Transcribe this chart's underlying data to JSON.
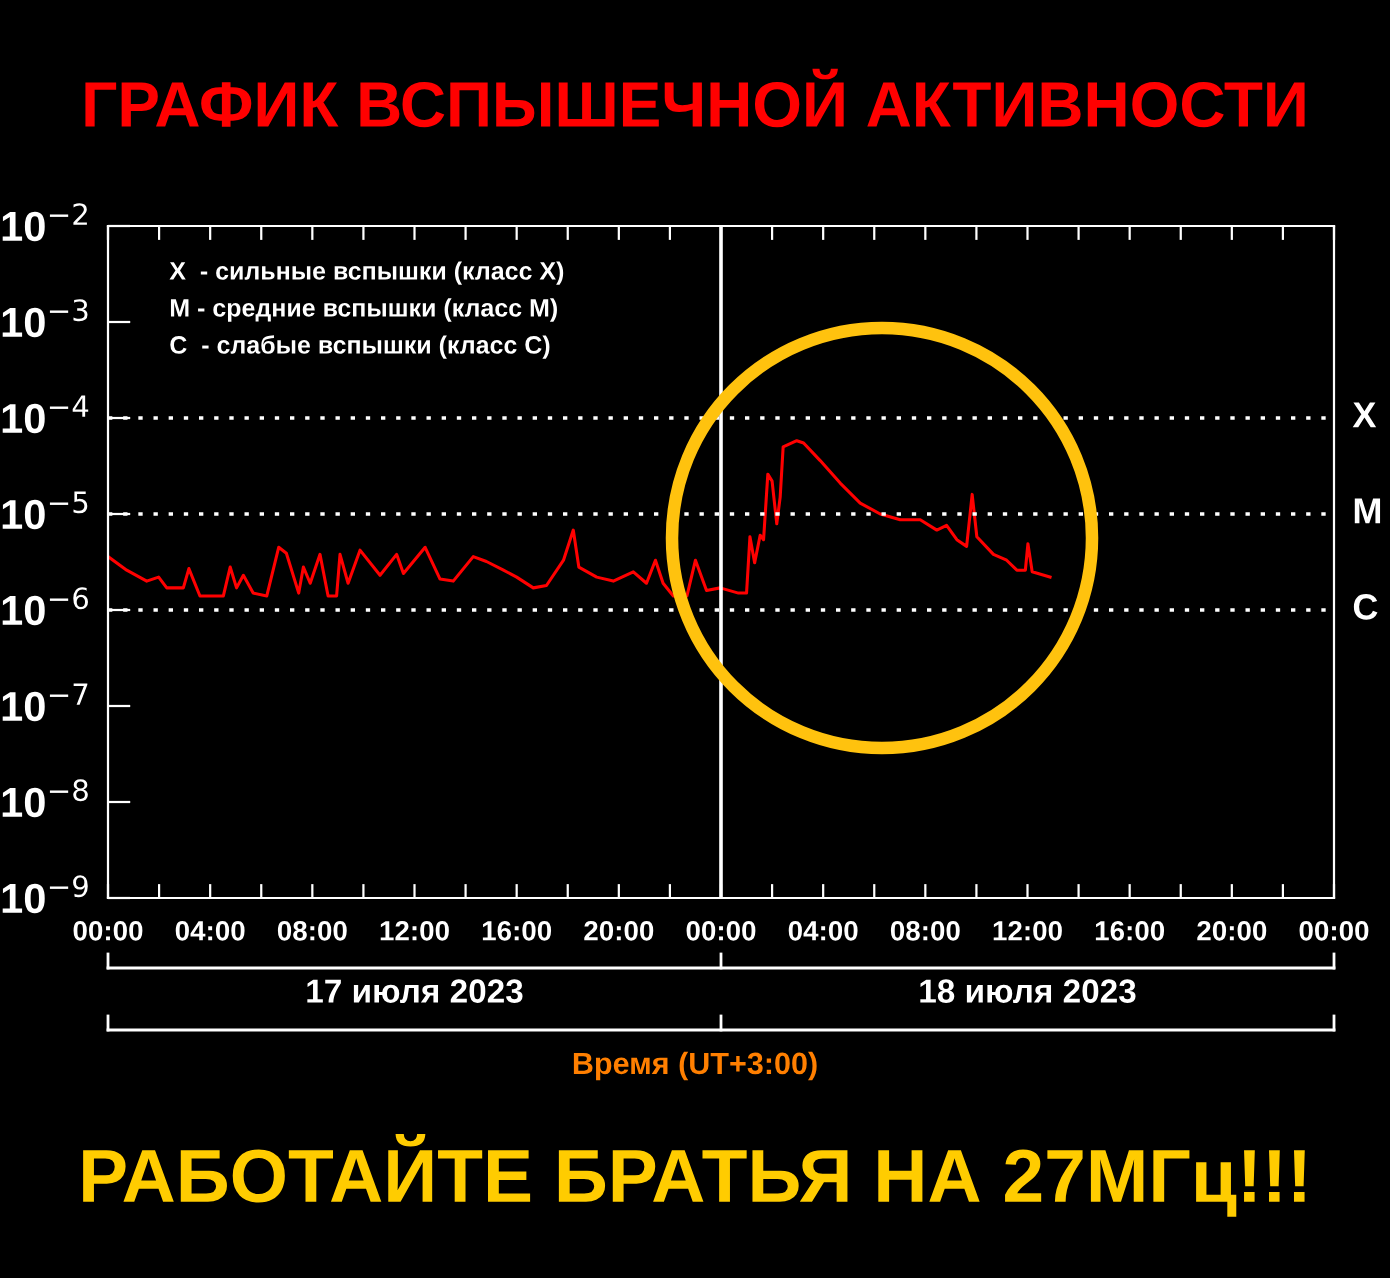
{
  "chart_data": {
    "type": "line",
    "title": "ГРАФИК ВСПЫШЕЧНОЙ АКТИВНОСТИ",
    "xlabel": "Время (UT+3:00)",
    "log": "y",
    "x": [
      "2023-07-17T00:00",
      "2023-07-17T00:44",
      "2023-07-17T01:31",
      "2023-07-17T01:59",
      "2023-07-17T02:18",
      "2023-07-17T02:57",
      "2023-07-17T03:10",
      "2023-07-17T03:36",
      "2023-07-17T04:31",
      "2023-07-17T04:47",
      "2023-07-17T05:02",
      "2023-07-17T05:18",
      "2023-07-17T05:41",
      "2023-07-17T06:13",
      "2023-07-17T06:41",
      "2023-07-17T06:59",
      "2023-07-17T07:28",
      "2023-07-17T07:39",
      "2023-07-17T07:55",
      "2023-07-17T08:18",
      "2023-07-17T08:37",
      "2023-07-17T08:57",
      "2023-07-17T09:05",
      "2023-07-17T09:24",
      "2023-07-17T09:52",
      "2023-07-17T10:39",
      "2023-07-17T11:18",
      "2023-07-17T11:34",
      "2023-07-17T12:25",
      "2023-07-17T13:00",
      "2023-07-17T13:31",
      "2023-07-17T14:18",
      "2023-07-17T14:49",
      "2023-07-17T15:29",
      "2023-07-17T16:00",
      "2023-07-17T16:39",
      "2023-07-17T17:10",
      "2023-07-17T17:50",
      "2023-07-17T18:13",
      "2023-07-17T18:26",
      "2023-07-17T19:08",
      "2023-07-17T19:47",
      "2023-07-17T20:34",
      "2023-07-17T21:05",
      "2023-07-17T21:26",
      "2023-07-17T21:44",
      "2023-07-17T22:08",
      "2023-07-17T22:40",
      "2023-07-17T23:00",
      "2023-07-17T23:26",
      "2023-07-17T23:58",
      "2023-07-18T00:41",
      "2023-07-18T01:00",
      "2023-07-18T01:08",
      "2023-07-18T01:19",
      "2023-07-18T01:32",
      "2023-07-18T01:40",
      "2023-07-18T01:50",
      "2023-07-18T02:00",
      "2023-07-18T02:11",
      "2023-07-18T02:19",
      "2023-07-18T02:26",
      "2023-07-18T02:58",
      "2023-07-18T03:14",
      "2023-07-18T03:53",
      "2023-07-18T04:40",
      "2023-07-18T05:27",
      "2023-07-18T06:14",
      "2023-07-18T07:01",
      "2023-07-18T07:48",
      "2023-07-18T08:27",
      "2023-07-18T08:50",
      "2023-07-18T09:14",
      "2023-07-18T09:37",
      "2023-07-18T09:50",
      "2023-07-18T10:01",
      "2023-07-18T10:40",
      "2023-07-18T11:11",
      "2023-07-18T11:35",
      "2023-07-18T11:55",
      "2023-07-18T12:01",
      "2023-07-18T12:11",
      "2023-07-18T12:53"
    ],
    "series": [
      {
        "color": "#ff0000",
        "values": [
          3.6e-06,
          2.6e-06,
          2e-06,
          2.2e-06,
          1.7e-06,
          1.7e-06,
          2.7e-06,
          1.4e-06,
          1.4e-06,
          2.8e-06,
          1.7e-06,
          2.3e-06,
          1.5e-06,
          1.4e-06,
          4.5e-06,
          3.9e-06,
          1.5e-06,
          2.8e-06,
          1.9e-06,
          3.8e-06,
          1.4e-06,
          1.4e-06,
          3.8e-06,
          1.9e-06,
          4.2e-06,
          2.3e-06,
          3.8e-06,
          2.4e-06,
          4.5e-06,
          2.1e-06,
          2e-06,
          3.6e-06,
          3.2e-06,
          2.6e-06,
          2.2e-06,
          1.7e-06,
          1.8e-06,
          3.3e-06,
          6.8e-06,
          2.8e-06,
          2.2e-06,
          2e-06,
          2.5e-06,
          1.9e-06,
          3.3e-06,
          1.9e-06,
          1.4e-06,
          1.4e-06,
          3.3e-06,
          1.6e-06,
          1.7e-06,
          1.5e-06,
          1.5e-06,
          5.8e-06,
          3.1e-06,
          6e-06,
          5.4e-06,
          2.6e-05,
          2.2e-05,
          7.9e-06,
          1.5e-05,
          5e-05,
          5.8e-05,
          5.5e-05,
          3.6e-05,
          2.1e-05,
          1.3e-05,
          1e-05,
          8.7e-06,
          8.7e-06,
          6.8e-06,
          7.6e-06,
          5.4e-06,
          4.6e-06,
          1.6e-05,
          5.8e-06,
          3.8e-06,
          3.3e-06,
          2.6e-06,
          2.6e-06,
          4.9e-06,
          2.5e-06,
          2.2e-06
        ]
      }
    ],
    "xlim": [
      "2023-07-17T00:00",
      "2023-07-19T00:00"
    ],
    "xticks": [
      {
        "value": "2023-07-17T00:00",
        "label": "00:00"
      },
      {
        "value": "2023-07-17T02:00",
        "label": null
      },
      {
        "value": "2023-07-17T04:00",
        "label": "04:00"
      },
      {
        "value": "2023-07-17T06:00",
        "label": null
      },
      {
        "value": "2023-07-17T08:00",
        "label": "08:00"
      },
      {
        "value": "2023-07-17T10:00",
        "label": null
      },
      {
        "value": "2023-07-17T12:00",
        "label": "12:00"
      },
      {
        "value": "2023-07-17T14:00",
        "label": null
      },
      {
        "value": "2023-07-17T16:00",
        "label": "16:00"
      },
      {
        "value": "2023-07-17T18:00",
        "label": null
      },
      {
        "value": "2023-07-17T20:00",
        "label": "20:00"
      },
      {
        "value": "2023-07-17T22:00",
        "label": null
      },
      {
        "value": "2023-07-18T00:00",
        "label": "00:00"
      },
      {
        "value": "2023-07-18T02:00",
        "label": null
      },
      {
        "value": "2023-07-18T04:00",
        "label": "04:00"
      },
      {
        "value": "2023-07-18T06:00",
        "label": null
      },
      {
        "value": "2023-07-18T08:00",
        "label": "08:00"
      },
      {
        "value": "2023-07-18T10:00",
        "label": null
      },
      {
        "value": "2023-07-18T12:00",
        "label": "12:00"
      },
      {
        "value": "2023-07-18T14:00",
        "label": null
      },
      {
        "value": "2023-07-18T16:00",
        "label": "16:00"
      },
      {
        "value": "2023-07-18T18:00",
        "label": null
      },
      {
        "value": "2023-07-18T20:00",
        "label": "20:00"
      },
      {
        "value": "2023-07-18T22:00",
        "label": null
      },
      {
        "value": "2023-07-19T00:00",
        "label": "00:00"
      }
    ],
    "ylim": [
      1e-09,
      0.01
    ],
    "yticks": [
      {
        "value": 1e-09,
        "label": "10$^{−9}$"
      },
      {
        "value": 1e-08,
        "label": "10$^{−8}$"
      },
      {
        "value": 1e-07,
        "label": "10$^{−7}$"
      },
      {
        "value": 1e-06,
        "label": "10$^{−6}$"
      },
      {
        "value": 1e-05,
        "label": "10$^{−5}$"
      },
      {
        "value": 0.0001,
        "label": "10$^{−4}$"
      },
      {
        "value": 0.001,
        "label": "10$^{−3}$"
      },
      {
        "value": 0.01,
        "label": "10$^{−2}$"
      }
    ],
    "ref_lines": [
      {
        "axis": "y",
        "value": 0.0001,
        "label": "X",
        "color": "#ffffff",
        "line_style": "dotted"
      },
      {
        "axis": "y",
        "value": 1e-05,
        "label": "M",
        "color": "#ffffff",
        "line_style": "dotted"
      },
      {
        "axis": "y",
        "value": 1e-06,
        "label": "C",
        "color": "#ffffff",
        "line_style": "dotted"
      },
      {
        "axis": "x",
        "value": "2023-07-18T00:00",
        "color": "#ffffff",
        "line_style": "solid"
      }
    ],
    "annotations": [
      "X  - сильные вспышки (класс X)",
      "M - средние вспышки (класс M)",
      "C  - слабые вспышки (класс C)",
      "17 июля 2023",
      "18 июля 2023",
      "РАБОТАЙТЕ БРАТЬЯ НА 27МГц!!!"
    ],
    "grid": false,
    "marker": "none",
    "line_style": "solid"
  }
}
